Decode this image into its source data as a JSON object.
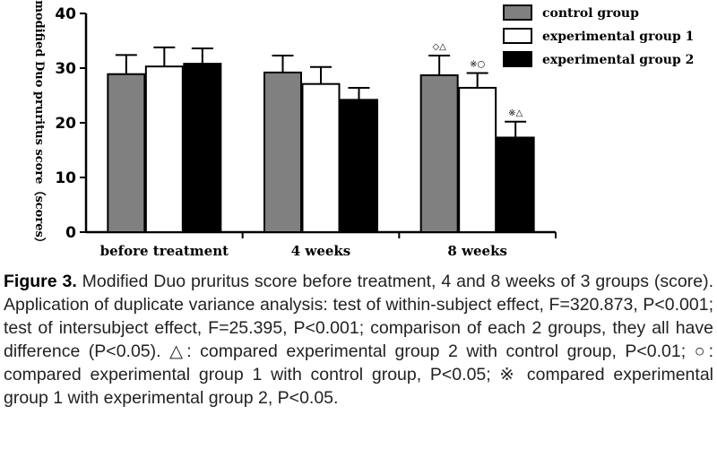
{
  "chart_data": {
    "type": "bar",
    "title": "",
    "xlabel": "",
    "ylabel": "modified Duo pruritus score（scores）",
    "ylim": [
      0,
      40
    ],
    "yticks": [
      "0",
      "10",
      "20",
      "30",
      "40"
    ],
    "categories": [
      "before treatment",
      "4 weeks",
      "8 weeks"
    ],
    "legend_position": "top-right",
    "series": [
      {
        "name": "control group",
        "color": "#808080",
        "values": [
          28.9,
          29.2,
          28.7
        ],
        "errors": [
          3.5,
          3.1,
          3.6
        ],
        "annotations": [
          "",
          "",
          "◇△"
        ]
      },
      {
        "name": "experimental group 1",
        "color": "#ffffff",
        "values": [
          30.3,
          27.1,
          26.4
        ],
        "errors": [
          3.5,
          3.1,
          2.7
        ],
        "annotations": [
          "",
          "",
          "※○"
        ]
      },
      {
        "name": "experimental group 2",
        "color": "#000000",
        "values": [
          30.8,
          24.2,
          17.3
        ],
        "errors": [
          2.8,
          2.2,
          2.9
        ],
        "annotations": [
          "",
          "",
          "※△"
        ]
      }
    ]
  },
  "caption": {
    "label": "Figure 3.",
    "text": " Modified Duo pruritus score before treatment, 4 and 8 weeks of 3 groups (score). Application of duplicate variance analysis: test of within-subject effect, F=320.873, P<0.001; test of intersubject effect, F=25.395, P<0.001; comparison of each 2 groups, they all have difference (P<0.05). △: compared experimental group 2 with control group, P<0.01; ○: compared experimental group 1 with control group, P<0.05; ※ compared experimental group 1 with experimental group 2, P<0.05."
  }
}
